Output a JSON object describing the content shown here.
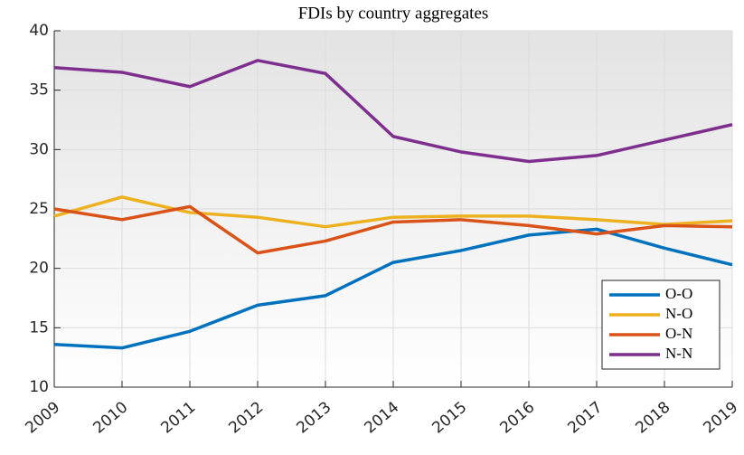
{
  "chart_data": {
    "type": "line",
    "title": "FDIs by country aggregates",
    "x": [
      2009,
      2010,
      2011,
      2012,
      2013,
      2014,
      2015,
      2016,
      2017,
      2018,
      2019
    ],
    "series": [
      {
        "name": "O-O",
        "color": "#0072bd",
        "values": [
          13.6,
          13.3,
          14.7,
          16.9,
          17.7,
          20.5,
          21.5,
          22.8,
          23.3,
          21.7,
          20.3
        ]
      },
      {
        "name": "N-O",
        "color": "#edb120",
        "values": [
          24.4,
          26.0,
          24.7,
          24.3,
          23.5,
          24.3,
          24.4,
          24.4,
          24.1,
          23.7,
          24.0
        ]
      },
      {
        "name": "O-N",
        "color": "#d95319",
        "values": [
          25.0,
          24.1,
          25.2,
          21.3,
          22.3,
          23.9,
          24.1,
          23.6,
          22.9,
          23.6,
          23.5
        ]
      },
      {
        "name": "N-N",
        "color": "#7e2f8e",
        "values": [
          36.9,
          36.5,
          35.3,
          37.5,
          36.4,
          31.1,
          29.8,
          29.0,
          29.5,
          30.8,
          32.1
        ]
      }
    ],
    "xlim": [
      2009,
      2019
    ],
    "xticks": [
      2009,
      2010,
      2011,
      2012,
      2013,
      2014,
      2015,
      2016,
      2017,
      2018,
      2019
    ],
    "ylim": [
      10,
      40
    ],
    "yticks": [
      10,
      15,
      20,
      25,
      30,
      35,
      40
    ],
    "grid": true,
    "legend": "lower right"
  }
}
